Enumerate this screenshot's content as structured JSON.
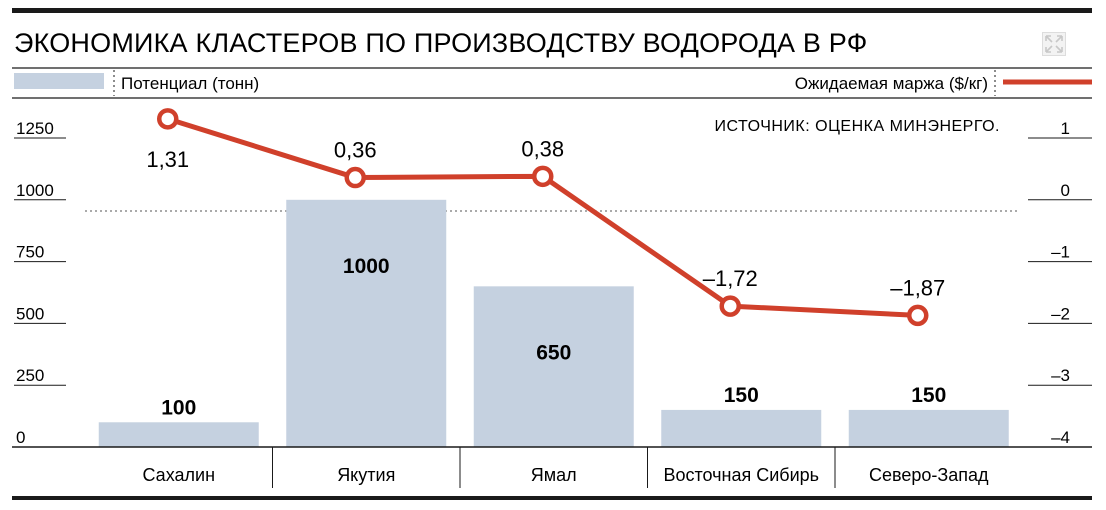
{
  "title": "ЭКОНОМИКА КЛАСТЕРОВ ПО ПРОИЗВОДСТВУ ВОДОРОДА В РФ",
  "source": "ИСТОЧНИК: ОЦЕНКА МИНЭНЕРГО.",
  "icons": {
    "expand": "expand-icon"
  },
  "colors": {
    "bar": "#c5d1e0",
    "line": "#d0402b",
    "text": "#1a1a1a",
    "rule": "#222222"
  },
  "chart_data": {
    "type": "bar",
    "categories": [
      "Сахалин",
      "Якутия",
      "Ямал",
      "Восточная Сибирь",
      "Северо-Запад"
    ],
    "series": [
      {
        "name": "Потенциал (тонн)",
        "type": "bar",
        "axis": "left",
        "values": [
          100,
          1000,
          650,
          150,
          150
        ],
        "labels": [
          "100",
          "1000",
          "650",
          "150",
          "150"
        ]
      },
      {
        "name": "Ожидаемая маржа ($/кг)",
        "type": "line",
        "axis": "right",
        "values": [
          1.31,
          0.36,
          0.38,
          -1.72,
          -1.87
        ],
        "labels": [
          "1,31",
          "0,36",
          "0,38",
          "–1,72",
          "–1,87"
        ]
      }
    ],
    "left_axis": {
      "ylim": [
        0,
        1250
      ],
      "ticks": [
        "0",
        "250",
        "500",
        "750",
        "1000",
        "1250"
      ]
    },
    "right_axis": {
      "ylim": [
        -4,
        1
      ],
      "ticks": [
        "–4",
        "–3",
        "–2",
        "–1",
        "0",
        "1"
      ]
    },
    "legend": "top"
  }
}
